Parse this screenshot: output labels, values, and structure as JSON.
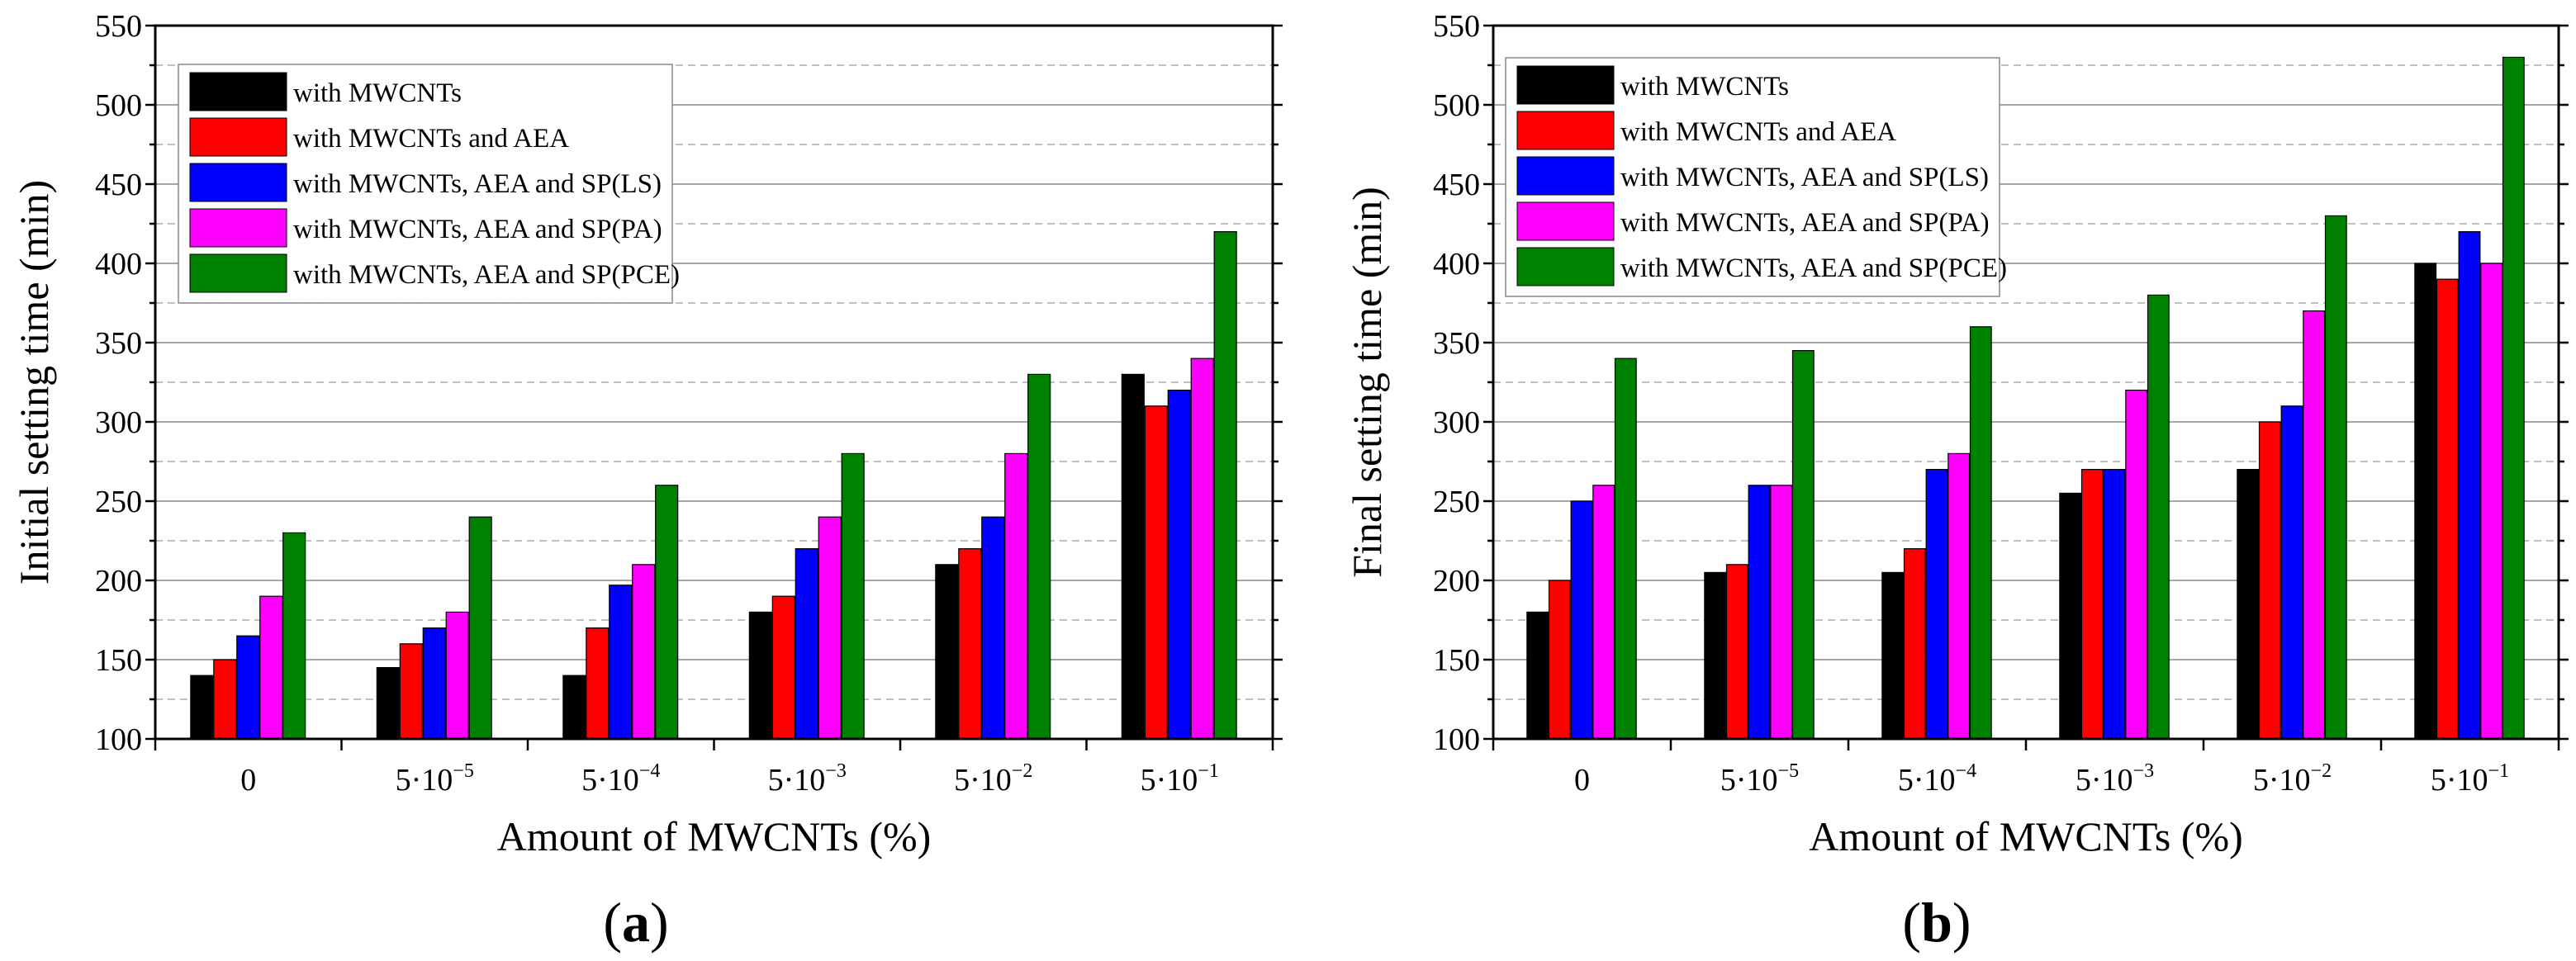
{
  "colors": {
    "with MWCNTs": "#000000",
    "with MWCNTs and AEA": "#ff0000",
    "with MWCNTs, AEA and SP(LS)": "#0000ff",
    "with MWCNTs, AEA and SP(PA)": "#ff00ff",
    "with MWCNTs, AEA and SP(PCE)": "#008000"
  },
  "chart_data": [
    {
      "type": "bar",
      "panel_label": "a",
      "categories": [
        {
          "base": "0",
          "exp": ""
        },
        {
          "base": "5·10",
          "exp": "−5"
        },
        {
          "base": "5·10",
          "exp": "−4"
        },
        {
          "base": "5·10",
          "exp": "−3"
        },
        {
          "base": "5·10",
          "exp": "−2"
        },
        {
          "base": "5·10",
          "exp": "−1"
        }
      ],
      "xlabel": "Amount of MWCNTs (%)",
      "ylabel": "Initial setting time (min)",
      "ylim": [
        100,
        550
      ],
      "yticks": [
        100,
        150,
        200,
        250,
        300,
        350,
        400,
        450,
        500,
        550
      ],
      "grid": true,
      "legend_position": "top-left",
      "series": [
        {
          "name": "with MWCNTs",
          "values": [
            140,
            145,
            140,
            180,
            210,
            330
          ]
        },
        {
          "name": "with MWCNTs and AEA",
          "values": [
            150,
            160,
            170,
            190,
            220,
            310
          ]
        },
        {
          "name": "with MWCNTs, AEA and SP(LS)",
          "values": [
            165,
            170,
            197,
            220,
            240,
            320
          ]
        },
        {
          "name": "with MWCNTs, AEA and SP(PA)",
          "values": [
            190,
            180,
            210,
            240,
            280,
            340
          ]
        },
        {
          "name": "with MWCNTs, AEA and SP(PCE)",
          "values": [
            230,
            240,
            260,
            280,
            330,
            420
          ]
        }
      ]
    },
    {
      "type": "bar",
      "panel_label": "b",
      "categories": [
        {
          "base": "0",
          "exp": ""
        },
        {
          "base": "5·10",
          "exp": "−5"
        },
        {
          "base": "5·10",
          "exp": "−4"
        },
        {
          "base": "5·10",
          "exp": "−3"
        },
        {
          "base": "5·10",
          "exp": "−2"
        },
        {
          "base": "5·10",
          "exp": "−1"
        }
      ],
      "xlabel": "Amount of MWCNTs (%)",
      "ylabel": "Final setting time (min)",
      "ylim": [
        100,
        550
      ],
      "yticks": [
        100,
        150,
        200,
        250,
        300,
        350,
        400,
        450,
        500,
        550
      ],
      "grid": true,
      "legend_position": "top-left",
      "series": [
        {
          "name": "with MWCNTs",
          "values": [
            180,
            205,
            205,
            255,
            270,
            400
          ]
        },
        {
          "name": "with MWCNTs and AEA",
          "values": [
            200,
            210,
            220,
            270,
            300,
            390
          ]
        },
        {
          "name": "with MWCNTs, AEA and SP(LS)",
          "values": [
            250,
            260,
            270,
            270,
            310,
            420
          ]
        },
        {
          "name": "with MWCNTs, AEA and SP(PA)",
          "values": [
            260,
            260,
            280,
            320,
            370,
            400
          ]
        },
        {
          "name": "with MWCNTs, AEA and SP(PCE)",
          "values": [
            340,
            345,
            360,
            380,
            430,
            530
          ]
        }
      ]
    }
  ]
}
